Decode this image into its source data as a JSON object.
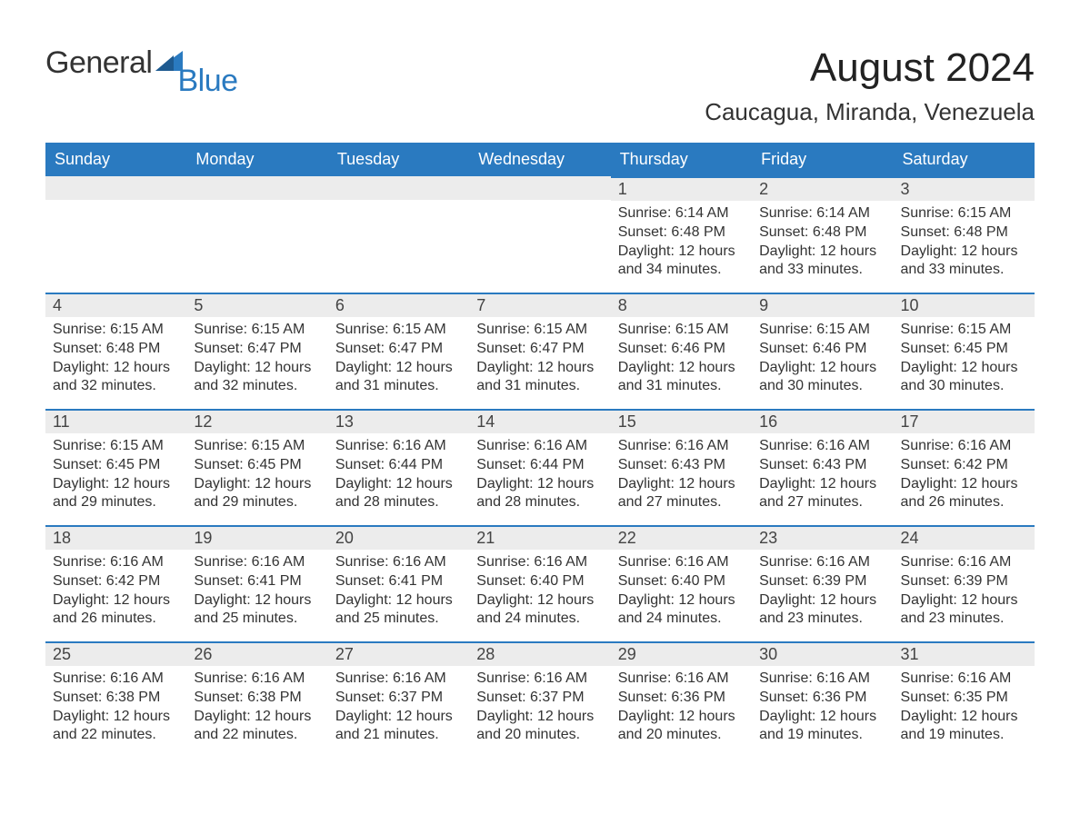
{
  "brand": {
    "part1": "General",
    "part2": "Blue"
  },
  "title": "August 2024",
  "location": "Caucagua, Miranda, Venezuela",
  "colors": {
    "header_bg": "#2a7ac0",
    "header_text": "#ffffff",
    "daynum_bg": "#ececec",
    "daynum_border": "#2a7ac0",
    "body_text": "#333333",
    "page_bg": "#ffffff"
  },
  "typography": {
    "title_fontsize": 44,
    "location_fontsize": 26,
    "weekday_fontsize": 18,
    "daynum_fontsize": 18,
    "body_fontsize": 16,
    "font_family": "Arial"
  },
  "layout": {
    "columns": 7,
    "rows": 5,
    "first_weekday_index": 4
  },
  "weekdays": [
    "Sunday",
    "Monday",
    "Tuesday",
    "Wednesday",
    "Thursday",
    "Friday",
    "Saturday"
  ],
  "days": [
    {
      "n": 1,
      "sunrise": "6:14 AM",
      "sunset": "6:48 PM",
      "daylight": "12 hours and 34 minutes."
    },
    {
      "n": 2,
      "sunrise": "6:14 AM",
      "sunset": "6:48 PM",
      "daylight": "12 hours and 33 minutes."
    },
    {
      "n": 3,
      "sunrise": "6:15 AM",
      "sunset": "6:48 PM",
      "daylight": "12 hours and 33 minutes."
    },
    {
      "n": 4,
      "sunrise": "6:15 AM",
      "sunset": "6:48 PM",
      "daylight": "12 hours and 32 minutes."
    },
    {
      "n": 5,
      "sunrise": "6:15 AM",
      "sunset": "6:47 PM",
      "daylight": "12 hours and 32 minutes."
    },
    {
      "n": 6,
      "sunrise": "6:15 AM",
      "sunset": "6:47 PM",
      "daylight": "12 hours and 31 minutes."
    },
    {
      "n": 7,
      "sunrise": "6:15 AM",
      "sunset": "6:47 PM",
      "daylight": "12 hours and 31 minutes."
    },
    {
      "n": 8,
      "sunrise": "6:15 AM",
      "sunset": "6:46 PM",
      "daylight": "12 hours and 31 minutes."
    },
    {
      "n": 9,
      "sunrise": "6:15 AM",
      "sunset": "6:46 PM",
      "daylight": "12 hours and 30 minutes."
    },
    {
      "n": 10,
      "sunrise": "6:15 AM",
      "sunset": "6:45 PM",
      "daylight": "12 hours and 30 minutes."
    },
    {
      "n": 11,
      "sunrise": "6:15 AM",
      "sunset": "6:45 PM",
      "daylight": "12 hours and 29 minutes."
    },
    {
      "n": 12,
      "sunrise": "6:15 AM",
      "sunset": "6:45 PM",
      "daylight": "12 hours and 29 minutes."
    },
    {
      "n": 13,
      "sunrise": "6:16 AM",
      "sunset": "6:44 PM",
      "daylight": "12 hours and 28 minutes."
    },
    {
      "n": 14,
      "sunrise": "6:16 AM",
      "sunset": "6:44 PM",
      "daylight": "12 hours and 28 minutes."
    },
    {
      "n": 15,
      "sunrise": "6:16 AM",
      "sunset": "6:43 PM",
      "daylight": "12 hours and 27 minutes."
    },
    {
      "n": 16,
      "sunrise": "6:16 AM",
      "sunset": "6:43 PM",
      "daylight": "12 hours and 27 minutes."
    },
    {
      "n": 17,
      "sunrise": "6:16 AM",
      "sunset": "6:42 PM",
      "daylight": "12 hours and 26 minutes."
    },
    {
      "n": 18,
      "sunrise": "6:16 AM",
      "sunset": "6:42 PM",
      "daylight": "12 hours and 26 minutes."
    },
    {
      "n": 19,
      "sunrise": "6:16 AM",
      "sunset": "6:41 PM",
      "daylight": "12 hours and 25 minutes."
    },
    {
      "n": 20,
      "sunrise": "6:16 AM",
      "sunset": "6:41 PM",
      "daylight": "12 hours and 25 minutes."
    },
    {
      "n": 21,
      "sunrise": "6:16 AM",
      "sunset": "6:40 PM",
      "daylight": "12 hours and 24 minutes."
    },
    {
      "n": 22,
      "sunrise": "6:16 AM",
      "sunset": "6:40 PM",
      "daylight": "12 hours and 24 minutes."
    },
    {
      "n": 23,
      "sunrise": "6:16 AM",
      "sunset": "6:39 PM",
      "daylight": "12 hours and 23 minutes."
    },
    {
      "n": 24,
      "sunrise": "6:16 AM",
      "sunset": "6:39 PM",
      "daylight": "12 hours and 23 minutes."
    },
    {
      "n": 25,
      "sunrise": "6:16 AM",
      "sunset": "6:38 PM",
      "daylight": "12 hours and 22 minutes."
    },
    {
      "n": 26,
      "sunrise": "6:16 AM",
      "sunset": "6:38 PM",
      "daylight": "12 hours and 22 minutes."
    },
    {
      "n": 27,
      "sunrise": "6:16 AM",
      "sunset": "6:37 PM",
      "daylight": "12 hours and 21 minutes."
    },
    {
      "n": 28,
      "sunrise": "6:16 AM",
      "sunset": "6:37 PM",
      "daylight": "12 hours and 20 minutes."
    },
    {
      "n": 29,
      "sunrise": "6:16 AM",
      "sunset": "6:36 PM",
      "daylight": "12 hours and 20 minutes."
    },
    {
      "n": 30,
      "sunrise": "6:16 AM",
      "sunset": "6:36 PM",
      "daylight": "12 hours and 19 minutes."
    },
    {
      "n": 31,
      "sunrise": "6:16 AM",
      "sunset": "6:35 PM",
      "daylight": "12 hours and 19 minutes."
    }
  ],
  "labels": {
    "sunrise": "Sunrise: ",
    "sunset": "Sunset: ",
    "daylight": "Daylight: "
  }
}
